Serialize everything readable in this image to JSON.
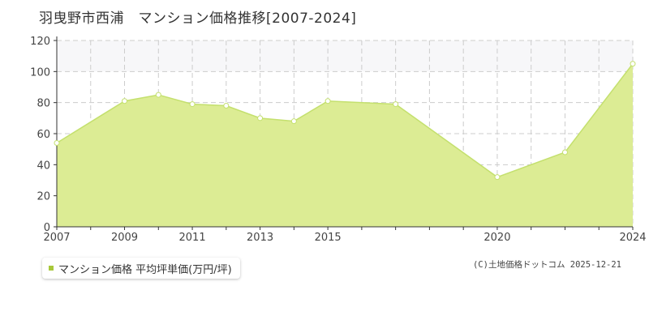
{
  "title": "羽曳野市西浦　マンション価格推移[2007-2024]",
  "legend": {
    "label": "マンション価格 平均坪単価(万円/坪)",
    "marker_color": "#a8c83a"
  },
  "credit": "(C)土地価格ドットコム 2025-12-21",
  "colors": {
    "fill": "#dcec94",
    "line": "#c4e06e",
    "point_fill": "#ffffff",
    "grid": "#cccccc",
    "band": "#f7f7f9"
  },
  "chart_data": {
    "type": "area",
    "title": "羽曳野市西浦　マンション価格推移[2007-2024]",
    "xlabel": "",
    "ylabel": "",
    "x": [
      2007,
      2008,
      2009,
      2010,
      2011,
      2012,
      2013,
      2014,
      2015,
      2016,
      2017,
      2018,
      2019,
      2020,
      2021,
      2022,
      2023,
      2024
    ],
    "xlim": [
      2007,
      2024
    ],
    "x_tick_labels": [
      "2007",
      "2009",
      "2011",
      "2013",
      "2015",
      "2020",
      "2024"
    ],
    "ylim": [
      0,
      120
    ],
    "y_ticks": [
      0,
      20,
      40,
      60,
      80,
      100,
      120
    ],
    "series": [
      {
        "name": "マンション価格 平均坪単価(万円/坪)",
        "points": [
          {
            "x": 2007,
            "y": 54
          },
          {
            "x": 2009,
            "y": 81
          },
          {
            "x": 2010,
            "y": 85
          },
          {
            "x": 2011,
            "y": 79
          },
          {
            "x": 2012,
            "y": 78
          },
          {
            "x": 2013,
            "y": 70
          },
          {
            "x": 2014,
            "y": 68
          },
          {
            "x": 2015,
            "y": 81
          },
          {
            "x": 2017,
            "y": 79
          },
          {
            "x": 2020,
            "y": 32
          },
          {
            "x": 2022,
            "y": 48
          },
          {
            "x": 2024,
            "y": 105
          }
        ]
      }
    ],
    "grid": true,
    "legend_position": "bottom-left"
  }
}
